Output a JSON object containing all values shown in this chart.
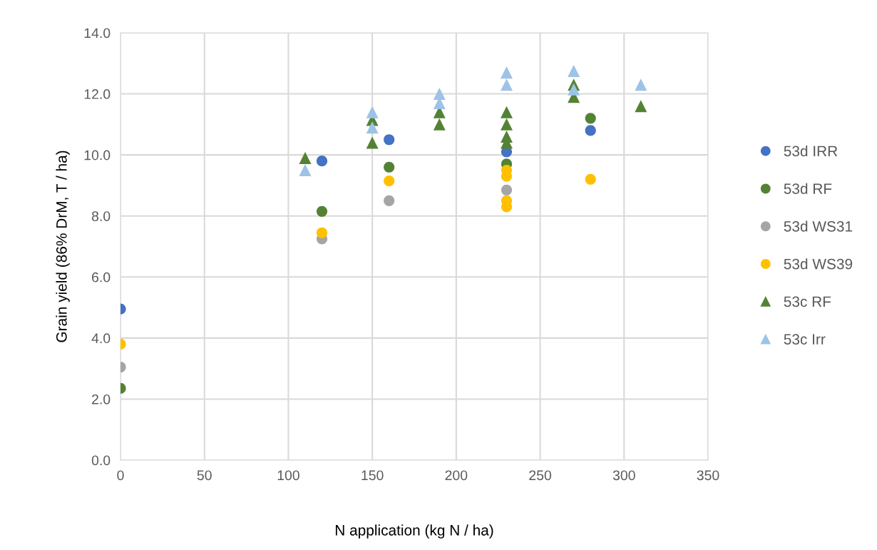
{
  "chart_data": {
    "type": "scatter",
    "xlabel": "N application (kg N / ha)",
    "ylabel": "Grain yield (86% DrM, T / ha)",
    "xlim": [
      0,
      350
    ],
    "xticks": [
      0,
      50,
      100,
      150,
      200,
      250,
      300,
      350
    ],
    "ylim": [
      0,
      14
    ],
    "yticks": [
      {
        "value": 0,
        "label": "0.0"
      },
      {
        "value": 2,
        "label": "2.0"
      },
      {
        "value": 4,
        "label": "4.0"
      },
      {
        "value": 6,
        "label": "6.0"
      },
      {
        "value": 8,
        "label": "8.0"
      },
      {
        "value": 10,
        "label": "10.0"
      },
      {
        "value": 12,
        "label": "12.0"
      },
      {
        "value": 14,
        "label": "14.0"
      }
    ],
    "grid": true,
    "legend": "right",
    "series": [
      {
        "name": "53d IRR",
        "color": "#4472c4",
        "marker": "circle",
        "x": [
          0,
          120,
          160,
          230,
          280
        ],
        "values": [
          4.95,
          9.8,
          10.5,
          10.1,
          10.8
        ]
      },
      {
        "name": "53d RF",
        "color": "#548235",
        "marker": "circle",
        "x": [
          0,
          120,
          160,
          230,
          280
        ],
        "values": [
          2.35,
          8.15,
          9.6,
          9.7,
          11.2
        ]
      },
      {
        "name": "53d WS31",
        "color": "#a5a5a5",
        "marker": "circle",
        "x": [
          0,
          120,
          160,
          230
        ],
        "values": [
          3.05,
          7.25,
          8.5,
          8.85
        ]
      },
      {
        "name": "53d WS39",
        "color": "#ffc000",
        "marker": "circle",
        "x": [
          0,
          120,
          160,
          230,
          230,
          230,
          230,
          280
        ],
        "values": [
          3.8,
          7.45,
          9.15,
          9.5,
          9.3,
          8.5,
          8.3,
          9.2
        ]
      },
      {
        "name": "53c RF",
        "color": "#548235",
        "marker": "triangle",
        "x": [
          110,
          150,
          150,
          190,
          190,
          230,
          230,
          230,
          230,
          270,
          270,
          310
        ],
        "values": [
          9.9,
          10.4,
          11.15,
          11.0,
          11.4,
          11.4,
          11.0,
          10.6,
          10.4,
          12.3,
          11.9,
          11.6
        ]
      },
      {
        "name": "53c Irr",
        "color": "#9dc3e6",
        "marker": "triangle",
        "x": [
          110,
          150,
          150,
          190,
          190,
          230,
          230,
          270,
          270,
          310
        ],
        "values": [
          9.5,
          11.4,
          10.9,
          12.0,
          11.7,
          12.7,
          12.3,
          12.75,
          12.15,
          12.3
        ]
      }
    ]
  }
}
